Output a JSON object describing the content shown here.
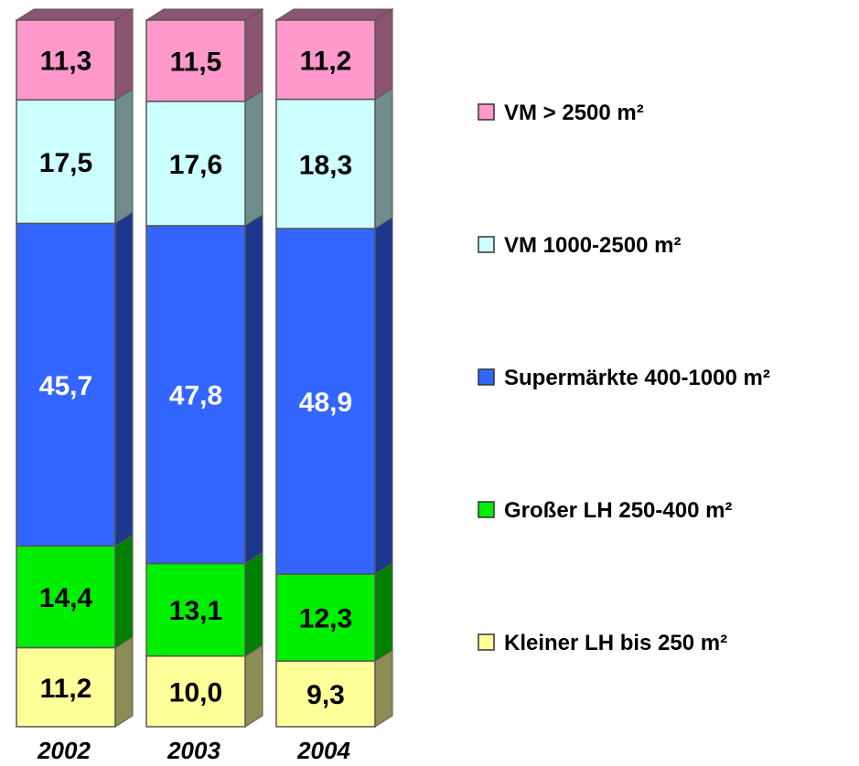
{
  "chart_data": {
    "type": "bar",
    "stacked": true,
    "three_d": true,
    "categories": [
      "2002",
      "2003",
      "2004"
    ],
    "series": [
      {
        "name": "Kleiner LH bis 250 m²",
        "values": [
          11.2,
          10.0,
          9.3
        ],
        "labels": [
          "11,2",
          "10,0",
          "9,3"
        ],
        "color": "#ffff99",
        "side": "#8c8c54",
        "text_color": "#000000"
      },
      {
        "name": "Großer LH 250-400 m²",
        "values": [
          14.4,
          13.1,
          12.3
        ],
        "labels": [
          "14,4",
          "13,1",
          "12,3"
        ],
        "color": "#00ee00",
        "side": "#008000",
        "text_color": "#000000"
      },
      {
        "name": "Supermärkte 400-1000 m²",
        "values": [
          45.7,
          47.8,
          48.9
        ],
        "labels": [
          "45,7",
          "47,8",
          "48,9"
        ],
        "color": "#3366ff",
        "side": "#1c388c",
        "text_color": "#ffffff"
      },
      {
        "name": "VM 1000-2500 m²",
        "values": [
          17.5,
          17.6,
          18.3
        ],
        "labels": [
          "17,5",
          "17,6",
          "18,3"
        ],
        "color": "#ccffff",
        "side": "#708c8c",
        "text_color": "#000000"
      },
      {
        "name": "VM > 2500 m²",
        "values": [
          11.3,
          11.5,
          11.2
        ],
        "labels": [
          "11,3",
          "11,5",
          "11,2"
        ],
        "color": "#ff99cc",
        "side": "#8c5470",
        "text_color": "#000000"
      }
    ],
    "legend_position": "right",
    "legend_order": [
      4,
      3,
      2,
      1,
      0
    ],
    "grid": false,
    "title": "",
    "xlabel": "",
    "ylabel": ""
  }
}
